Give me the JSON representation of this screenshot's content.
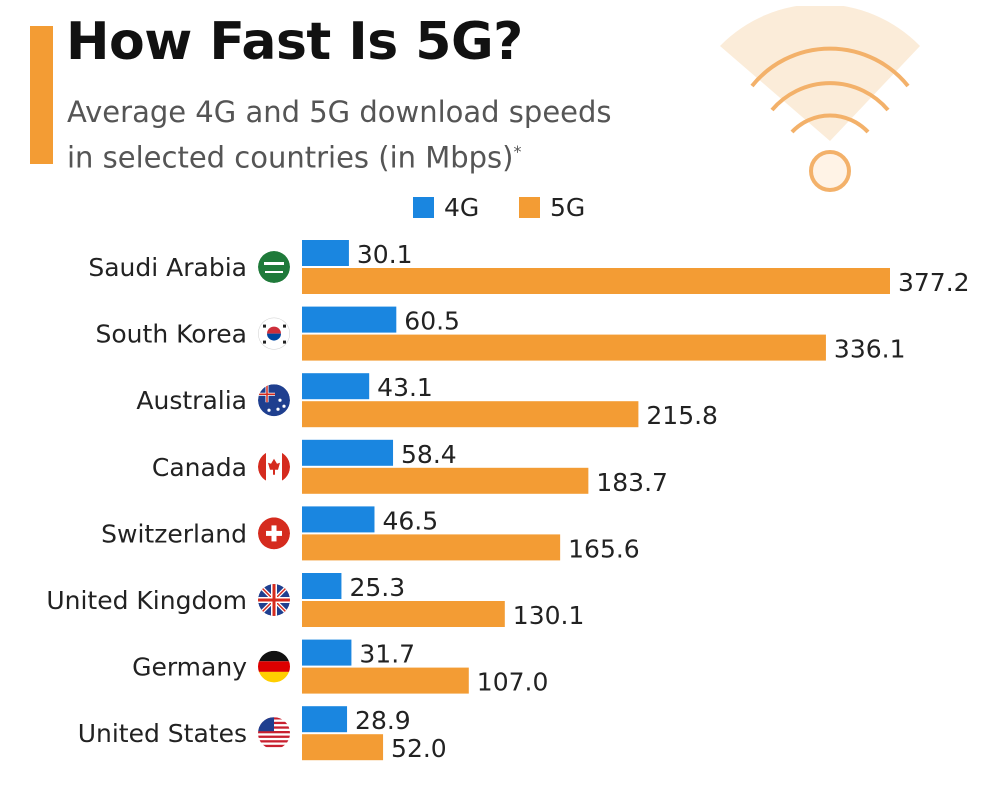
{
  "header": {
    "title": "How Fast Is 5G?",
    "subtitle_line1": "Average 4G and 5G download speeds",
    "subtitle_line2": "in selected countries (in Mbps)",
    "subtitle_mark": "*"
  },
  "decoration": {
    "icon": "wifi-icon"
  },
  "colors": {
    "accent": "#f39c34",
    "series_4g": "#1a86e0",
    "series_5g": "#f39c34"
  },
  "legend": {
    "placement": "top",
    "items": [
      {
        "label": "4G",
        "color": "#1a86e0"
      },
      {
        "label": "5G",
        "color": "#f39c34"
      }
    ]
  },
  "chart_data": {
    "type": "bar",
    "orientation": "horizontal",
    "categories": [
      "Saudi Arabia",
      "South Korea",
      "Australia",
      "Canada",
      "Switzerland",
      "United Kingdom",
      "Germany",
      "United States"
    ],
    "flag_icons": [
      "flag-saudi-arabia-icon",
      "flag-south-korea-icon",
      "flag-australia-icon",
      "flag-canada-icon",
      "flag-switzerland-icon",
      "flag-united-kingdom-icon",
      "flag-germany-icon",
      "flag-united-states-icon"
    ],
    "series": [
      {
        "name": "4G",
        "color": "#1a86e0",
        "values": [
          30.1,
          60.5,
          43.1,
          58.4,
          46.5,
          25.3,
          31.7,
          28.9
        ],
        "labels": [
          "30.1",
          "60.5",
          "43.1",
          "58.4",
          "46.5",
          "25.3",
          "31.7",
          "28.9"
        ]
      },
      {
        "name": "5G",
        "color": "#f39c34",
        "values": [
          377.2,
          336.1,
          215.8,
          183.7,
          165.6,
          130.1,
          107.0,
          52.0
        ],
        "labels": [
          "377.2",
          "336.1",
          "215.8",
          "183.7",
          "165.6",
          "130.1",
          "107.0",
          "52.0"
        ]
      }
    ],
    "xlim": [
      0,
      377.2
    ],
    "grid": false,
    "xlabel": "",
    "ylabel": ""
  }
}
